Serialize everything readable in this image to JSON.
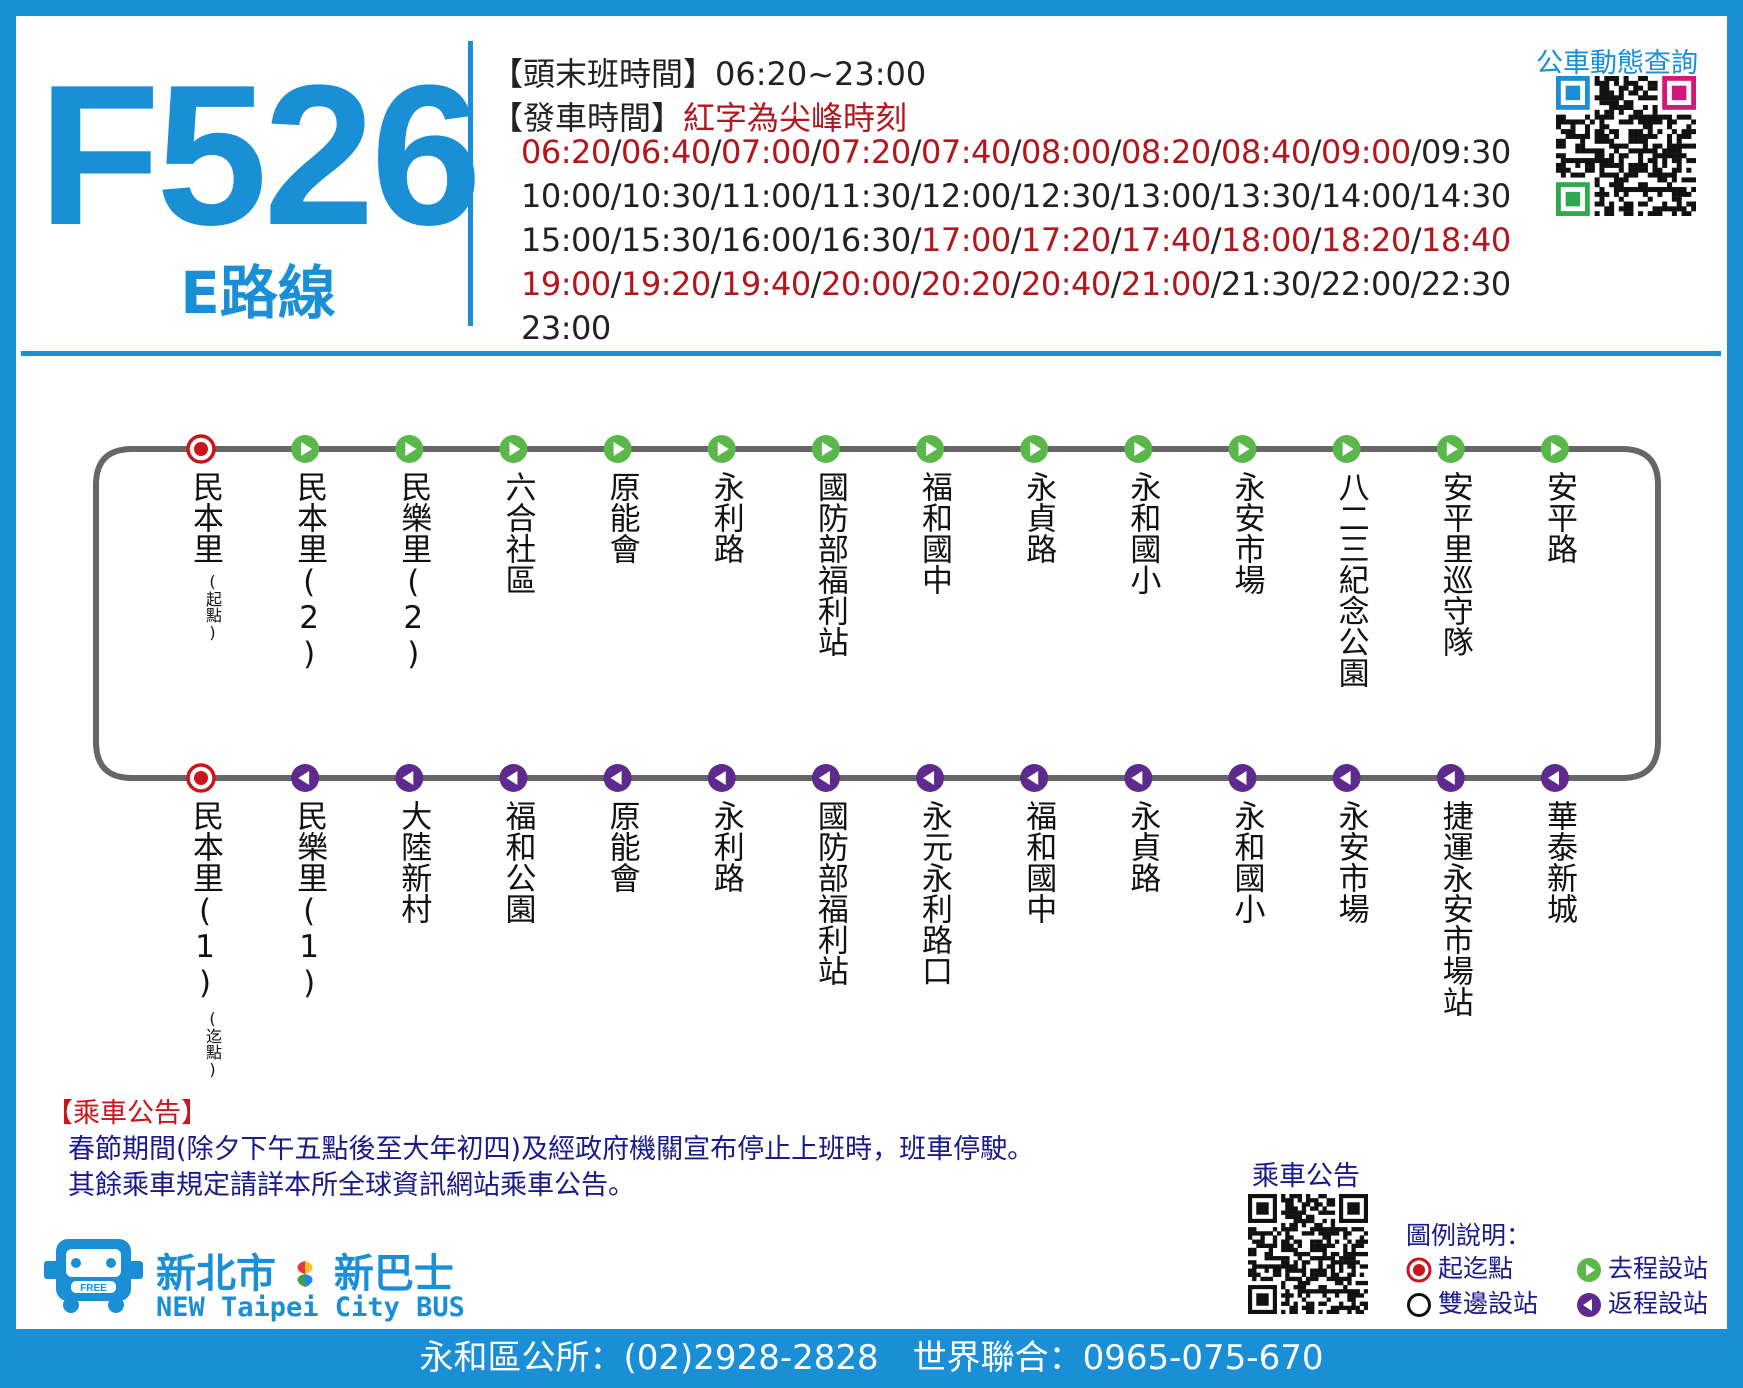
{
  "route": {
    "number": "F526",
    "subtitle": "E路線"
  },
  "schedule": {
    "first_last_label": "【頭末班時間】",
    "first_last_value": "06:20~23:00",
    "depart_label": "【發車時間】",
    "depart_note": "紅字為尖峰時刻",
    "rows": [
      [
        {
          "t": "06:20",
          "peak": true
        },
        {
          "t": "06:40",
          "peak": true
        },
        {
          "t": "07:00",
          "peak": true
        },
        {
          "t": "07:20",
          "peak": true
        },
        {
          "t": "07:40",
          "peak": true
        },
        {
          "t": "08:00",
          "peak": true
        },
        {
          "t": "08:20",
          "peak": true
        },
        {
          "t": "08:40",
          "peak": true
        },
        {
          "t": "09:00",
          "peak": true
        },
        {
          "t": "09:30",
          "peak": false
        }
      ],
      [
        {
          "t": "10:00",
          "peak": false
        },
        {
          "t": "10:30",
          "peak": false
        },
        {
          "t": "11:00",
          "peak": false
        },
        {
          "t": "11:30",
          "peak": false
        },
        {
          "t": "12:00",
          "peak": false
        },
        {
          "t": "12:30",
          "peak": false
        },
        {
          "t": "13:00",
          "peak": false
        },
        {
          "t": "13:30",
          "peak": false
        },
        {
          "t": "14:00",
          "peak": false
        },
        {
          "t": "14:30",
          "peak": false
        }
      ],
      [
        {
          "t": "15:00",
          "peak": false
        },
        {
          "t": "15:30",
          "peak": false
        },
        {
          "t": "16:00",
          "peak": false
        },
        {
          "t": "16:30",
          "peak": false
        },
        {
          "t": "17:00",
          "peak": true
        },
        {
          "t": "17:20",
          "peak": true
        },
        {
          "t": "17:40",
          "peak": true
        },
        {
          "t": "18:00",
          "peak": true
        },
        {
          "t": "18:20",
          "peak": true
        },
        {
          "t": "18:40",
          "peak": true
        }
      ],
      [
        {
          "t": "19:00",
          "peak": true
        },
        {
          "t": "19:20",
          "peak": true
        },
        {
          "t": "19:40",
          "peak": true
        },
        {
          "t": "20:00",
          "peak": true
        },
        {
          "t": "20:20",
          "peak": true
        },
        {
          "t": "20:40",
          "peak": true
        },
        {
          "t": "21:00",
          "peak": true
        },
        {
          "t": "21:30",
          "peak": false
        },
        {
          "t": "22:00",
          "peak": false
        },
        {
          "t": "22:30",
          "peak": false
        }
      ],
      [
        {
          "t": "23:00",
          "peak": false
        }
      ]
    ],
    "separator": "/"
  },
  "qr_top": {
    "title": "公車動態查詢"
  },
  "stops": {
    "outbound": [
      {
        "name": "民本里",
        "note": "(起點)",
        "type": "terminal"
      },
      {
        "name": "民本里(2)",
        "type": "out"
      },
      {
        "name": "民樂里(2)",
        "type": "out"
      },
      {
        "name": "六合社區",
        "type": "out"
      },
      {
        "name": "原能會",
        "type": "out"
      },
      {
        "name": "永利路",
        "type": "out"
      },
      {
        "name": "國防部福利站",
        "type": "out"
      },
      {
        "name": "福和國中",
        "type": "out"
      },
      {
        "name": "永貞路",
        "type": "out"
      },
      {
        "name": "永和國小",
        "type": "out"
      },
      {
        "name": "永安市場",
        "type": "out"
      },
      {
        "name": "八二三紀念公園",
        "type": "out"
      },
      {
        "name": "安平里巡守隊",
        "type": "out"
      },
      {
        "name": "安平路",
        "type": "out"
      }
    ],
    "inbound": [
      {
        "name": "民本里(1)",
        "note": "(迄點)",
        "type": "terminal"
      },
      {
        "name": "民樂里(1)",
        "type": "back"
      },
      {
        "name": "大陸新村",
        "type": "back"
      },
      {
        "name": "福和公園",
        "type": "back"
      },
      {
        "name": "原能會",
        "type": "back"
      },
      {
        "name": "永利路",
        "type": "back"
      },
      {
        "name": "國防部福利站",
        "type": "back"
      },
      {
        "name": "永元永利路口",
        "type": "back"
      },
      {
        "name": "福和國中",
        "type": "back"
      },
      {
        "name": "永貞路",
        "type": "back"
      },
      {
        "name": "永和國小",
        "type": "back"
      },
      {
        "name": "永安市場",
        "type": "back"
      },
      {
        "name": "捷運永安市場站",
        "type": "back"
      },
      {
        "name": "華泰新城",
        "type": "back"
      }
    ]
  },
  "notice": {
    "title": "【乘車公告】",
    "lines": [
      "春節期間(除夕下午五點後至大年初四)及經政府機關宣布停止上班時，班車停駛。",
      "其餘乘車規定請詳本所全球資訊網站乘車公告。"
    ]
  },
  "qr_bottom": {
    "title": "乘車公告"
  },
  "legend": {
    "title": "圖例說明：",
    "items": {
      "terminal": "起迄點",
      "outbound": "去程設站",
      "both": "雙邊設站",
      "inbound": "返程設站"
    }
  },
  "logo": {
    "cn_left": "新北市",
    "cn_right": "新巴士",
    "en": "NEW Taipei City BUS",
    "badge": "FREE"
  },
  "footer": {
    "text": "永和區公所：(02)2928-2828　世界聯合：0965-075-670"
  },
  "colors": {
    "brand_blue": "#1a8fd6",
    "peak_red": "#b3161c",
    "outbound_green": "#5ab84a",
    "inbound_purple": "#5e2a8e",
    "terminal_red": "#c8161c",
    "route_line": "#666666"
  }
}
